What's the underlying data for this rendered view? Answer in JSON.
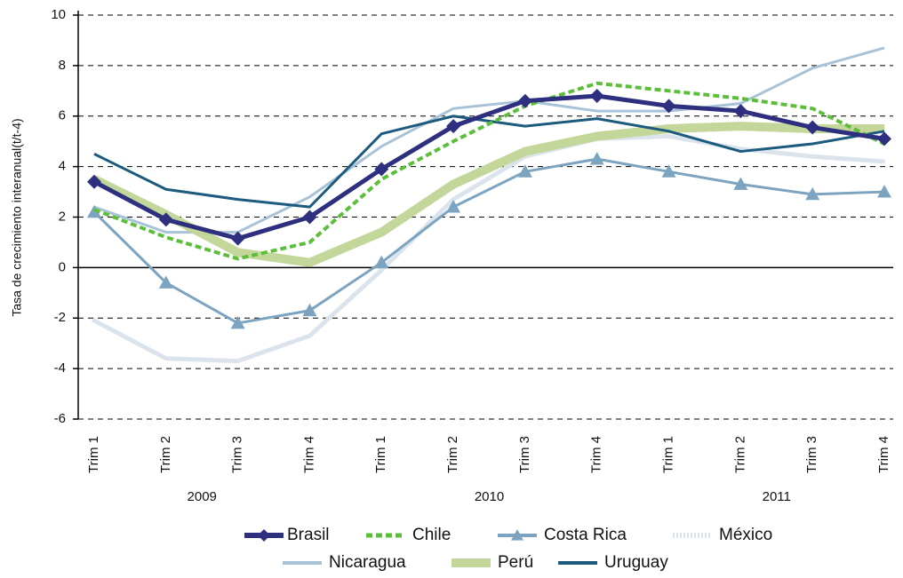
{
  "chart_data": {
    "type": "line",
    "ylabel": "Tasa de crecimiento interanual(t/t-4)",
    "categories": [
      "Trim 1",
      "Trim 2",
      "Trim 3",
      "Trim 4",
      "Trim 1",
      "Trim 2",
      "Trim 3",
      "Trim 4",
      "Trim 1",
      "Trim 2",
      "Trim 3",
      "Trim 4"
    ],
    "groups": [
      "2009",
      "2010",
      "2011"
    ],
    "ylim": [
      -6,
      10
    ],
    "yticks": [
      -6,
      -4,
      -2,
      0,
      2,
      4,
      6,
      8,
      10
    ],
    "grid": true,
    "series": [
      {
        "name": "Brasil",
        "color": "#2e2f7f",
        "marker": "diamond",
        "values": [
          3.4,
          1.9,
          1.15,
          2.0,
          3.9,
          5.6,
          6.6,
          6.8,
          6.4,
          6.2,
          5.55,
          5.1
        ]
      },
      {
        "name": "Chile",
        "color": "#5cbf3a",
        "dash": "dashed",
        "values": [
          2.3,
          1.2,
          0.35,
          1.0,
          3.5,
          5.0,
          6.4,
          7.3,
          7.0,
          6.7,
          6.3,
          4.9
        ]
      },
      {
        "name": "Costa Rica",
        "color": "#7ca4c0",
        "marker": "triangle",
        "values": [
          2.2,
          -0.6,
          -2.2,
          -1.7,
          0.2,
          2.4,
          3.8,
          4.3,
          3.8,
          3.3,
          2.9,
          3.0
        ]
      },
      {
        "name": "México",
        "color": "#dbe3ec",
        "dash": "dotted",
        "values": [
          -2.1,
          -3.6,
          -3.7,
          -2.7,
          -0.1,
          2.7,
          4.4,
          5.1,
          5.2,
          4.7,
          4.4,
          4.2
        ]
      },
      {
        "name": "Nicaragua",
        "color": "#a8c3d7",
        "values": [
          2.4,
          1.4,
          1.4,
          2.8,
          4.8,
          6.3,
          6.6,
          6.2,
          6.2,
          6.5,
          7.9,
          8.7
        ]
      },
      {
        "name": "Perú",
        "color": "#c4d79b",
        "values": [
          3.5,
          2.1,
          0.6,
          0.2,
          1.4,
          3.3,
          4.6,
          5.2,
          5.5,
          5.6,
          5.5,
          5.5
        ]
      },
      {
        "name": "Uruguay",
        "color": "#1c5a7e",
        "values": [
          4.5,
          3.1,
          2.7,
          2.4,
          5.3,
          6.0,
          5.6,
          5.9,
          5.4,
          4.6,
          4.9,
          5.4
        ]
      }
    ]
  }
}
